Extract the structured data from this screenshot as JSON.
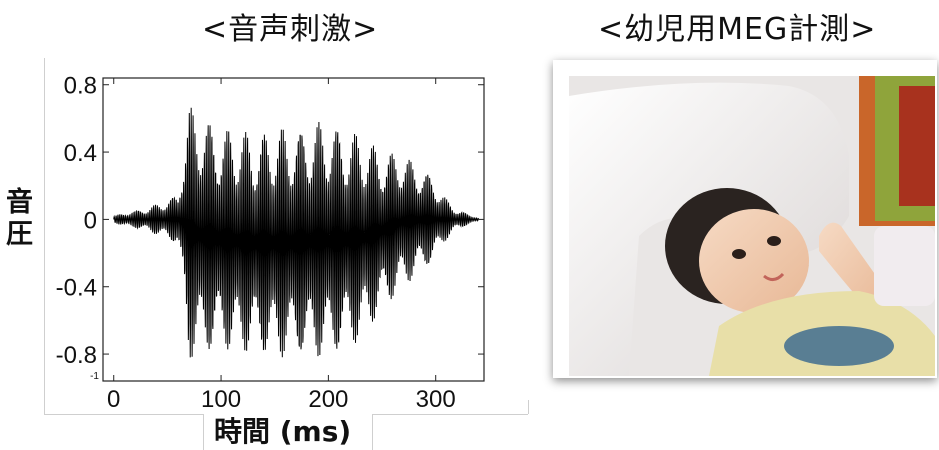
{
  "left_panel": {
    "title": "<音声刺激>"
  },
  "right_panel": {
    "title": "<幼児用MEG計測>",
    "photo_alt": "infant lying in MEG helmet"
  },
  "chart_data": {
    "type": "line",
    "title": "",
    "xlabel": "時間 (ms)",
    "ylabel": "音圧",
    "xlim": [
      -10,
      345
    ],
    "ylim": [
      -0.96,
      0.84
    ],
    "x_ticks": [
      0,
      100,
      200,
      300
    ],
    "x_tick_labels": [
      "0",
      "100",
      "200",
      "300"
    ],
    "y_ticks": [
      0.8,
      0.4,
      0,
      -0.4,
      -0.8
    ],
    "y_tick_labels": [
      "0.8",
      "0.4",
      "0",
      "-0.4",
      "-0.8"
    ],
    "y_extra_label": "-1",
    "grid": false,
    "series": [
      {
        "x": [
          0,
          10,
          20,
          30,
          40,
          50,
          60,
          66,
          70,
          80,
          100,
          130,
          150,
          170,
          190,
          210,
          230,
          250,
          270,
          290,
          300,
          310,
          320,
          330,
          340
        ],
        "y_max": [
          0.02,
          0.04,
          0.05,
          0.07,
          0.09,
          0.12,
          0.15,
          0.5,
          0.68,
          0.62,
          0.55,
          0.52,
          0.54,
          0.55,
          0.58,
          0.56,
          0.5,
          0.42,
          0.38,
          0.3,
          0.22,
          0.12,
          0.06,
          0.03,
          0.01
        ],
        "y_min": [
          -0.02,
          -0.04,
          -0.05,
          -0.07,
          -0.09,
          -0.12,
          -0.15,
          -0.55,
          -0.84,
          -0.8,
          -0.78,
          -0.8,
          -0.82,
          -0.82,
          -0.82,
          -0.8,
          -0.72,
          -0.55,
          -0.4,
          -0.3,
          -0.22,
          -0.12,
          -0.06,
          -0.03,
          -0.01
        ]
      }
    ]
  }
}
